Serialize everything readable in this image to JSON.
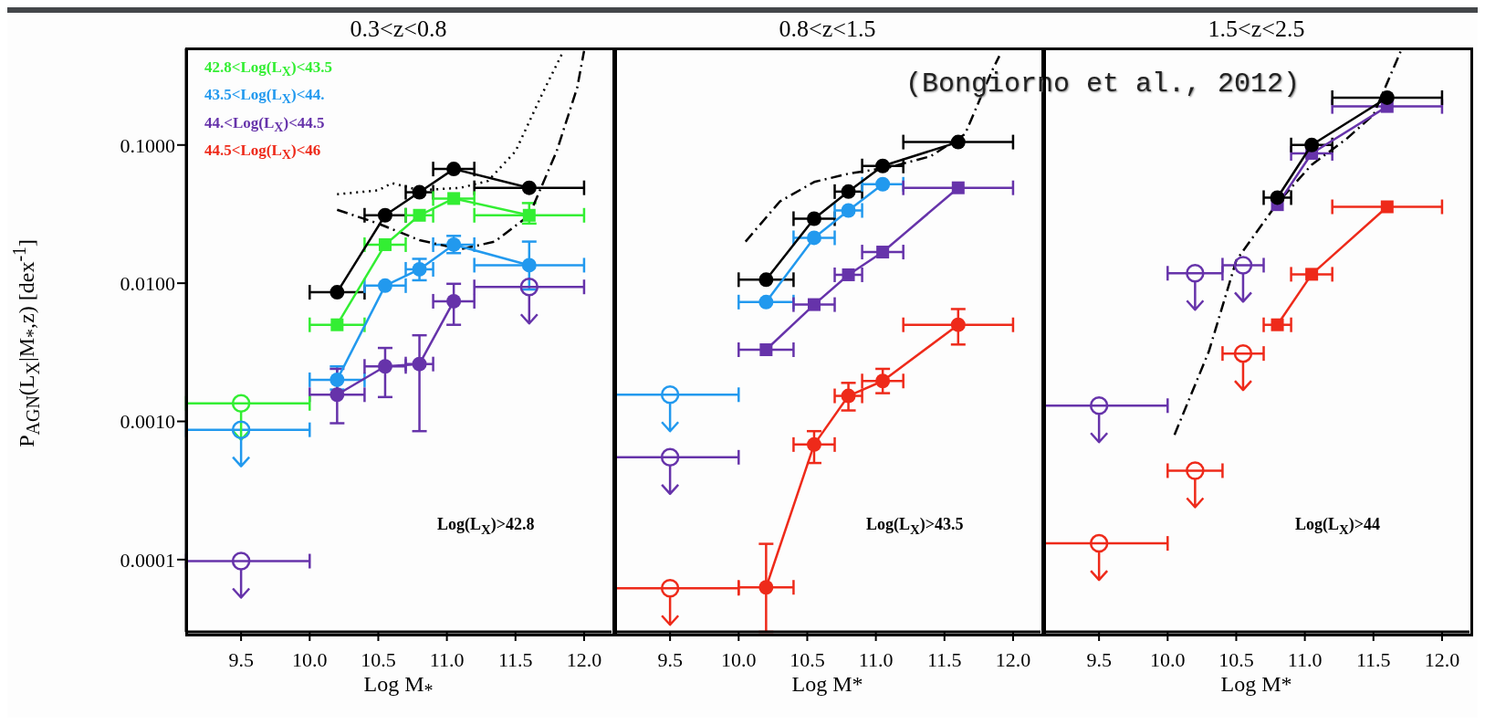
{
  "chart_data": [
    {
      "type": "line",
      "title": "0.3<z<0.8",
      "xlabel": "Log M$_{*}$",
      "ylabel": "P$_{AGN}$(L$_{X}$|M$_{*}$,z) [dex$^{-1}$]",
      "log": "y",
      "legend": "top left",
      "xlim": [
        9.1,
        12.2
      ],
      "xticks": [
        9.5,
        {
          "value": 10,
          "label": "10.0"
        },
        10.5,
        {
          "value": 11,
          "label": "11.0"
        },
        11.5,
        {
          "value": 12,
          "label": "12.0"
        }
      ],
      "ylim": [
        3e-05,
        0.5
      ],
      "yticks": [
        {
          "value": 0.0001,
          "label": "0.0001"
        },
        {
          "value": 0.001,
          "label": "0.0010"
        },
        {
          "value": 0.01,
          "label": "0.0100"
        },
        {
          "value": 0.1,
          "label": "0.1000"
        }
      ],
      "annotations": [
        "Log(L$_{X}$)>42.8"
      ],
      "series": [
        {
          "type": "line",
          "color": "#000000",
          "line_style": "dotted",
          "marker": "none",
          "x": [
            10.2,
            10.5,
            10.6,
            10.8,
            11.1,
            11.3,
            11.5,
            11.7,
            11.85
          ],
          "values": [
            0.044,
            0.047,
            0.053,
            0.047,
            0.049,
            0.055,
            0.09,
            0.24,
            0.48
          ]
        },
        {
          "type": "line",
          "color": "#000000",
          "line_style": "dashed",
          "marker": "none",
          "x": [
            10.2,
            10.5,
            10.8,
            11.1,
            11.35,
            11.6,
            11.8,
            11.95,
            12.0
          ],
          "values": [
            0.034,
            0.027,
            0.0205,
            0.0176,
            0.02,
            0.031,
            0.09,
            0.26,
            0.48
          ]
        },
        {
          "color": "#000000",
          "marker": "circle",
          "x": [
            10.2,
            10.55,
            10.8,
            11.05,
            11.6
          ],
          "values": [
            0.0086,
            0.031,
            0.0455,
            0.067,
            0.049
          ],
          "xerrors": [
            [
              10.0,
              10.4
            ],
            [
              10.4,
              10.7
            ],
            [
              10.7,
              10.9
            ],
            [
              10.9,
              11.2
            ],
            [
              11.2,
              12.0
            ]
          ]
        },
        {
          "name": "42.8<Log(L$_{X}$)<43.5",
          "color": "#33ee33",
          "marker": "square",
          "x": [
            10.2,
            10.55,
            10.8,
            11.05,
            11.6
          ],
          "values": [
            0.005,
            0.019,
            0.031,
            0.041,
            0.031
          ],
          "errors": [
            null,
            null,
            null,
            null,
            [
              0.027,
              0.038
            ]
          ],
          "xerrors": [
            [
              10.0,
              10.4
            ],
            [
              10.4,
              10.7
            ],
            [
              10.7,
              10.9
            ],
            [
              10.9,
              11.2
            ],
            [
              11.2,
              12.0
            ]
          ]
        },
        {
          "name": "43.5<Log(L$_{X}$)<44.",
          "color": "#2299ee",
          "marker": "circle",
          "x": [
            10.2,
            10.55,
            10.8,
            11.05,
            11.6
          ],
          "values": [
            0.002,
            0.0096,
            0.0126,
            0.019,
            0.0135
          ],
          "errors": [
            [
              0.0017,
              0.0025
            ],
            null,
            [
              0.0105,
              0.015
            ],
            [
              0.0165,
              0.022
            ],
            [
              0.009,
              0.02
            ]
          ],
          "xerrors": [
            [
              10.0,
              10.4
            ],
            [
              10.4,
              10.7
            ],
            [
              10.7,
              10.9
            ],
            [
              10.9,
              11.2
            ],
            [
              11.2,
              12.0
            ]
          ]
        },
        {
          "name": "44.<Log(L$_{X}$)<44.5",
          "color": "#6633aa",
          "marker": "circle",
          "x": [
            10.2,
            10.55,
            10.8,
            11.05
          ],
          "values": [
            0.00156,
            0.0025,
            0.0026,
            0.0074
          ],
          "errors": [
            [
              0.00097,
              0.0024
            ],
            [
              0.0015,
              0.0034
            ],
            [
              0.00085,
              0.0042
            ],
            [
              0.005,
              0.0099
            ]
          ],
          "xerrors": [
            [
              10.0,
              10.4
            ],
            [
              10.4,
              10.7
            ],
            [
              10.7,
              10.9
            ],
            [
              10.9,
              11.2
            ]
          ]
        },
        {
          "name": "44.5<Log(L$_{X}$)<46",
          "color": "#ee2a1a",
          "marker": "circle"
        },
        {
          "type": "scatter",
          "color": "#33ee33",
          "x": [
            9.5
          ],
          "values": [
            0.00135
          ],
          "xerrors": [
            [
              9.1,
              10.0
            ]
          ]
        },
        {
          "type": "scatter",
          "color": "#2299ee",
          "x": [
            9.5
          ],
          "values": [
            0.00087
          ],
          "xerrors": [
            [
              9.1,
              10.0
            ]
          ]
        },
        {
          "type": "scatter",
          "color": "#6633aa",
          "x": [
            9.5,
            11.6
          ],
          "values": [
            9.75e-05,
            0.0094
          ],
          "xerrors": [
            [
              9.1,
              10.0
            ],
            [
              11.2,
              12.0
            ]
          ]
        }
      ]
    },
    {
      "type": "line",
      "title": "0.8<z<1.5",
      "xlabel": "Log M*",
      "log": "y",
      "tick_labels": "x",
      "xlim": [
        9.1,
        12.2
      ],
      "xticks": [
        9.5,
        {
          "value": 10,
          "label": "10.0"
        },
        10.5,
        {
          "value": 11,
          "label": "11.0"
        },
        11.5,
        {
          "value": 12,
          "label": "12.0"
        }
      ],
      "ylim": [
        3e-05,
        0.5
      ],
      "yticks": [
        {
          "value": 0.0001,
          "label": null
        },
        {
          "value": 0.001,
          "label": null
        },
        {
          "value": 0.01,
          "label": null
        },
        {
          "value": 0.1,
          "label": null
        }
      ],
      "annotations": [
        "Log(L$_{X}$)>43.5",
        "(Bongiorno et al., 2012)"
      ],
      "series": [
        {
          "type": "line",
          "color": "#000000",
          "line_style": "dashed",
          "marker": "none",
          "x": [
            10.05,
            10.3,
            10.55,
            10.8,
            11.1,
            11.4,
            11.65,
            11.85,
            11.9
          ],
          "values": [
            0.02,
            0.039,
            0.054,
            0.062,
            0.069,
            0.083,
            0.12,
            0.35,
            0.44
          ]
        },
        {
          "color": "#000000",
          "marker": "circle",
          "x": [
            10.2,
            10.55,
            10.8,
            11.05,
            11.6
          ],
          "values": [
            0.0106,
            0.0293,
            0.046,
            0.0705,
            0.105
          ],
          "xerrors": [
            [
              10.0,
              10.4
            ],
            [
              10.4,
              10.7
            ],
            [
              10.7,
              10.9
            ],
            [
              10.9,
              11.2
            ],
            [
              11.2,
              12.0
            ]
          ]
        },
        {
          "color": "#2299ee",
          "marker": "circle",
          "x": [
            10.2,
            10.55,
            10.8,
            11.05
          ],
          "values": [
            0.0073,
            0.0213,
            0.0336,
            0.052
          ],
          "xerrors": [
            [
              10.0,
              10.4
            ],
            [
              10.4,
              10.7
            ],
            [
              10.7,
              10.9
            ],
            [
              10.9,
              11.2
            ]
          ]
        },
        {
          "color": "#6633aa",
          "marker": "square",
          "x": [
            10.2,
            10.55,
            10.8,
            11.05,
            11.6
          ],
          "values": [
            0.0033,
            0.007,
            0.0115,
            0.0168,
            0.049
          ],
          "xerrors": [
            [
              10.0,
              10.4
            ],
            [
              10.4,
              10.7
            ],
            [
              10.7,
              10.9
            ],
            [
              10.9,
              11.2
            ],
            [
              11.2,
              12.0
            ]
          ]
        },
        {
          "color": "#ee2a1a",
          "marker": "circle",
          "x": [
            10.2,
            10.55,
            10.8,
            11.05,
            11.6
          ],
          "values": [
            6.3e-05,
            0.00068,
            0.00153,
            0.00196,
            0.005
          ],
          "errors": [
            [
              3e-05,
              0.00013
            ],
            [
              0.0005,
              0.00085
            ],
            [
              0.0012,
              0.0019
            ],
            [
              0.0016,
              0.0024
            ],
            [
              0.0036,
              0.0065
            ]
          ],
          "xerrors": [
            [
              10.0,
              10.4
            ],
            [
              10.4,
              10.7
            ],
            [
              10.7,
              10.9
            ],
            [
              10.9,
              11.2
            ],
            [
              11.2,
              12.0
            ]
          ]
        },
        {
          "type": "scatter",
          "color": "#2299ee",
          "x": [
            9.5
          ],
          "values": [
            0.00156
          ],
          "xerrors": [
            [
              9.1,
              10.0
            ]
          ]
        },
        {
          "type": "scatter",
          "color": "#6633aa",
          "x": [
            9.5
          ],
          "values": [
            0.00055
          ],
          "xerrors": [
            [
              9.1,
              10.0
            ]
          ]
        },
        {
          "type": "scatter",
          "color": "#ee2a1a",
          "x": [
            9.5
          ],
          "values": [
            6.2e-05
          ],
          "xerrors": [
            [
              9.1,
              10.0
            ]
          ]
        }
      ]
    },
    {
      "type": "line",
      "title": "1.5<z<2.5",
      "xlabel": "Log M*",
      "log": "y",
      "tick_labels": "x",
      "xlim": [
        9.1,
        12.2
      ],
      "xticks": [
        9.5,
        {
          "value": 10,
          "label": "10.0"
        },
        10.5,
        {
          "value": 11,
          "label": "11.0"
        },
        11.5,
        {
          "value": 12,
          "label": "12.0"
        }
      ],
      "ylim": [
        3e-05,
        0.5
      ],
      "yticks": [
        {
          "value": 0.0001,
          "label": null
        },
        {
          "value": 0.001,
          "label": null
        },
        {
          "value": 0.01,
          "label": null
        },
        {
          "value": 0.1,
          "label": null
        }
      ],
      "annotations": [
        "Log(L$_{X}$)>44"
      ],
      "series": [
        {
          "type": "line",
          "color": "#000000",
          "line_style": "dashed",
          "marker": "none",
          "x": [
            10.05,
            10.3,
            10.5,
            10.8,
            11.05,
            11.3,
            11.5,
            11.7
          ],
          "values": [
            0.0008,
            0.0032,
            0.0146,
            0.038,
            0.072,
            0.11,
            0.165,
            0.48
          ]
        },
        {
          "color": "#6633aa",
          "marker": "square",
          "x": [
            10.8,
            11.05,
            11.6
          ],
          "values": [
            0.037,
            0.087,
            0.19
          ],
          "xerrors": [
            null,
            [
              10.9,
              11.2
            ],
            [
              11.2,
              12.0
            ]
          ]
        },
        {
          "color": "#000000",
          "marker": "circle",
          "x": [
            10.8,
            11.05,
            11.6
          ],
          "values": [
            0.0416,
            0.1,
            0.22
          ],
          "xerrors": [
            [
              10.7,
              10.9
            ],
            [
              10.9,
              11.2
            ],
            [
              11.2,
              12.0
            ]
          ]
        },
        {
          "color": "#ee2a1a",
          "marker": "square",
          "x": [
            10.8,
            11.05,
            11.6
          ],
          "values": [
            0.005,
            0.0116,
            0.0357
          ],
          "xerrors": [
            [
              10.7,
              10.9
            ],
            [
              10.9,
              11.2
            ],
            [
              11.2,
              12.0
            ]
          ]
        },
        {
          "type": "scatter",
          "color": "#6633aa",
          "x": [
            9.5,
            10.2,
            10.55
          ],
          "values": [
            0.0013,
            0.0118,
            0.0135
          ],
          "xerrors": [
            [
              9.1,
              10.0
            ],
            [
              10.0,
              10.4
            ],
            [
              10.4,
              10.7
            ]
          ]
        },
        {
          "type": "scatter",
          "color": "#ee2a1a",
          "x": [
            9.5,
            10.2,
            10.55
          ],
          "values": [
            0.000131,
            0.00044,
            0.0031
          ],
          "xerrors": [
            [
              9.1,
              10.0
            ],
            [
              10.0,
              10.4
            ],
            [
              10.4,
              10.7
            ]
          ]
        }
      ]
    }
  ]
}
